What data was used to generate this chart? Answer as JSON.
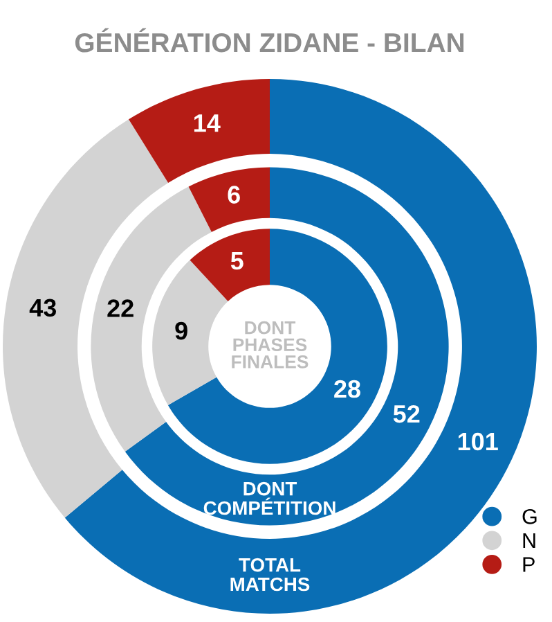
{
  "chart_data": {
    "type": "donut",
    "title": "GÉNÉRATION ZIDANE - BILAN",
    "categories": [
      "G",
      "N",
      "P"
    ],
    "colors": [
      "#0a6eb4",
      "#d3d3d3",
      "#b51c15"
    ],
    "series": [
      {
        "name": "TOTAL MATCHS",
        "values": [
          101,
          43,
          14
        ]
      },
      {
        "name": "DONT COMPÉTITION",
        "values": [
          52,
          22,
          6
        ]
      },
      {
        "name": "DONT PHASES FINALES",
        "values": [
          28,
          9,
          5
        ]
      }
    ],
    "data_labels": true,
    "legend": "bottom right"
  }
}
